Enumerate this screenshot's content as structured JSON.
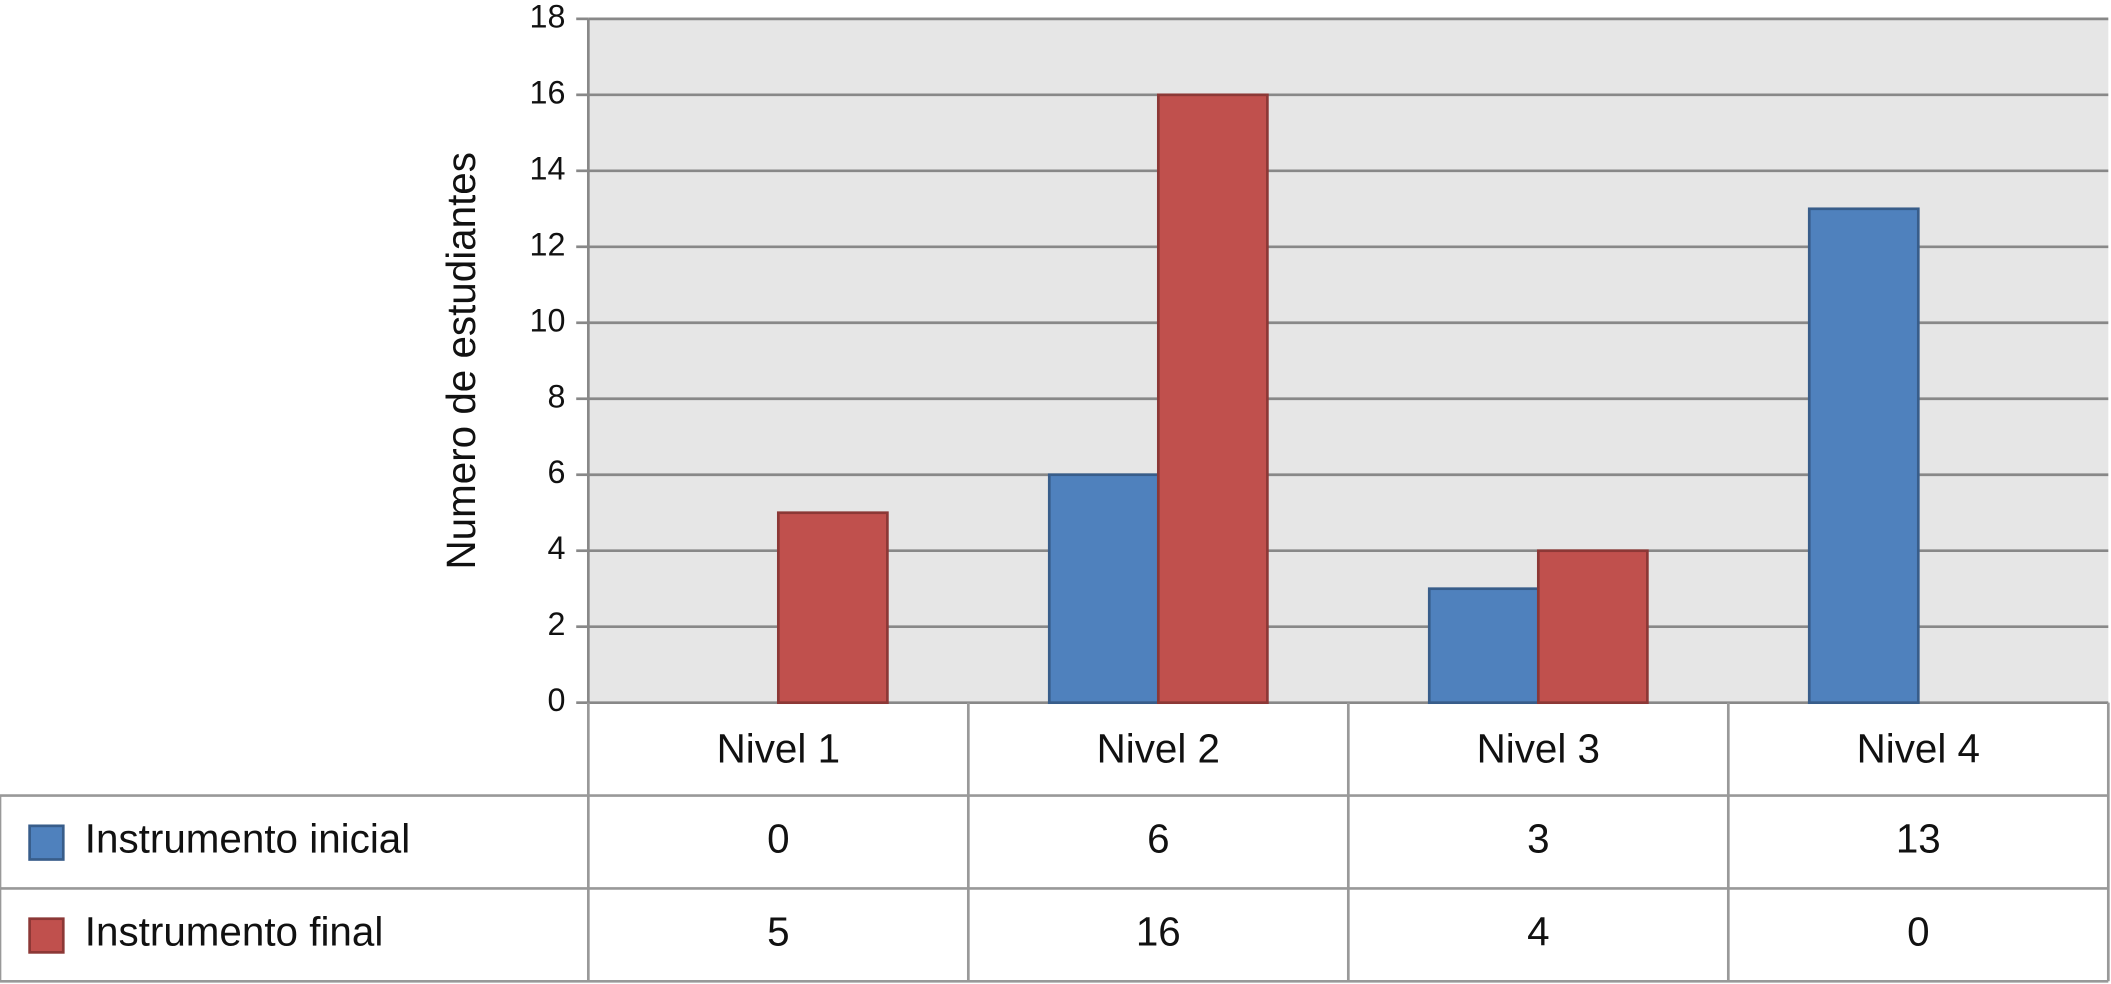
{
  "chart_data": {
    "type": "bar",
    "y_label": "Numero de estudiantes",
    "categories": [
      "Nivel 1",
      "Nivel 2",
      "Nivel 3",
      "Nivel 4"
    ],
    "series": [
      {
        "name": "Instrumento inicial",
        "color": "#4f81bd",
        "values": [
          0,
          6,
          3,
          13
        ]
      },
      {
        "name": "Instrumento final",
        "color": "#c0504d",
        "values": [
          5,
          16,
          4,
          0
        ]
      }
    ],
    "ylim": [
      0,
      18
    ],
    "yticks": [
      0,
      2,
      4,
      6,
      8,
      10,
      12,
      14,
      16,
      18
    ],
    "grid": true,
    "data_table": true
  }
}
